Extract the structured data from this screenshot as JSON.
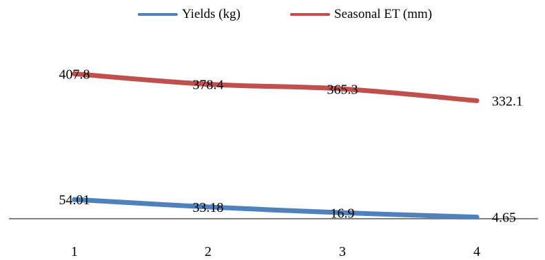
{
  "chart_data": {
    "type": "line",
    "categories": [
      "1",
      "2",
      "3",
      "4"
    ],
    "series": [
      {
        "name": "Yields (kg)",
        "values": [
          54.01,
          33.18,
          16.9,
          4.65
        ],
        "labels": [
          "54.01",
          "33.18",
          "16.9",
          "4.65"
        ],
        "color": "#4F81BD"
      },
      {
        "name": "Seasonal ET (mm)",
        "values": [
          407.8,
          378.4,
          365.3,
          332.1
        ],
        "labels": [
          "407.8",
          "378.4",
          "365.3",
          "332.1"
        ],
        "color": "#C0504D"
      }
    ],
    "ylim": [
      0,
      600
    ],
    "title": "",
    "xlabel": "",
    "ylabel": "",
    "legend": "top",
    "grid": false,
    "axis_color": "#808080"
  }
}
